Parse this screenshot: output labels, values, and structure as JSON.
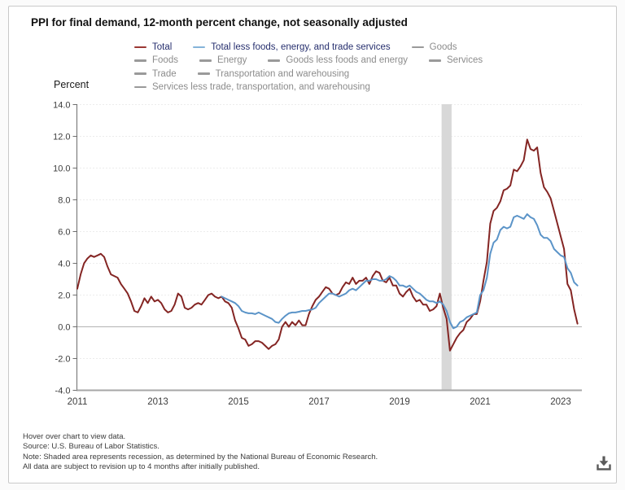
{
  "title": "PPI for final demand, 12-month percent change, not seasonally adjusted",
  "y_axis_title": "Percent",
  "colors": {
    "total_line": "#842523",
    "core_line": "#5b94c8",
    "active_legend_text": "#262f6e",
    "inactive_legend_text": "#8c8c8c",
    "inactive_swatch": "#9a9a9a",
    "grid": "#d9d9d9",
    "zero_line": "#b3b3b3",
    "x_axis": "#a6a6a6",
    "y_axis": "#6e6e6e",
    "tick_text": "#3d3d3d",
    "recession_band": "#d8d8d8",
    "icon": "#5a5a5a"
  },
  "legend": {
    "rows": [
      [
        {
          "label": "Total",
          "active": true,
          "color": "#9b3834"
        },
        {
          "label": "Total less foods, energy, and trade services",
          "active": true,
          "color": "#85b4d9"
        },
        {
          "label": "Goods",
          "active": false
        }
      ],
      [
        {
          "label": "Foods",
          "active": false
        },
        {
          "label": "Energy",
          "active": false
        },
        {
          "label": "Goods less foods and energy",
          "active": false
        },
        {
          "label": "Services",
          "active": false
        }
      ],
      [
        {
          "label": "Trade",
          "active": false
        },
        {
          "label": "Transportation and warehousing",
          "active": false
        }
      ],
      [
        {
          "label": "Services less trade, transportation, and warehousing",
          "active": false
        }
      ]
    ]
  },
  "chart_data": {
    "type": "line",
    "title": "PPI for final demand, 12-month percent change, not seasonally adjusted",
    "ylabel": "Percent",
    "ylim": [
      -4.0,
      14.0
    ],
    "grid": true,
    "yticks": [
      "14.0",
      "12.0",
      "10.0",
      "8.0",
      "6.0",
      "4.0",
      "2.0",
      "0.0",
      "-2.0",
      "-4.0"
    ],
    "xticks": [
      "2011",
      "2013",
      "2015",
      "2017",
      "2019",
      "2021",
      "2023"
    ],
    "x_start_month": "2011-01",
    "x_end_month": "2023-06",
    "recession_band": {
      "start": "2020-02",
      "end": "2020-04",
      "note": "recession shading"
    },
    "series": [
      {
        "name": "Total",
        "color": "#842523",
        "start_month": "2011-01",
        "values": [
          2.4,
          3.3,
          4.0,
          4.3,
          4.5,
          4.4,
          4.5,
          4.6,
          4.4,
          3.8,
          3.3,
          3.2,
          3.1,
          2.7,
          2.4,
          2.1,
          1.6,
          1.0,
          0.9,
          1.3,
          1.8,
          1.5,
          1.9,
          1.6,
          1.7,
          1.5,
          1.1,
          0.9,
          1.0,
          1.4,
          2.1,
          1.9,
          1.2,
          1.1,
          1.2,
          1.4,
          1.5,
          1.4,
          1.7,
          2.0,
          2.1,
          1.9,
          1.8,
          1.9,
          1.6,
          1.5,
          1.2,
          0.4,
          -0.1,
          -0.7,
          -0.8,
          -1.2,
          -1.1,
          -0.9,
          -0.9,
          -1.0,
          -1.2,
          -1.4,
          -1.2,
          -1.1,
          -0.8,
          0.0,
          0.3,
          0.0,
          0.3,
          0.1,
          0.4,
          0.1,
          0.1,
          0.8,
          1.3,
          1.7,
          1.9,
          2.2,
          2.5,
          2.4,
          2.1,
          2.0,
          2.1,
          2.5,
          2.8,
          2.7,
          3.1,
          2.7,
          2.9,
          2.9,
          3.1,
          2.7,
          3.2,
          3.5,
          3.4,
          2.9,
          2.8,
          3.1,
          2.6,
          2.6,
          2.1,
          1.9,
          2.2,
          2.4,
          1.9,
          1.6,
          1.7,
          1.4,
          1.4,
          1.0,
          1.1,
          1.3,
          2.1,
          1.2,
          0.5,
          -1.5,
          -1.1,
          -0.7,
          -0.4,
          -0.2,
          0.3,
          0.5,
          0.8,
          0.8,
          1.6,
          2.9,
          4.1,
          6.5,
          7.3,
          7.5,
          7.9,
          8.6,
          8.7,
          8.9,
          9.9,
          9.8,
          10.1,
          10.5,
          11.8,
          11.2,
          11.1,
          11.3,
          9.7,
          8.8,
          8.5,
          8.1,
          7.3,
          6.5,
          5.7,
          4.9,
          2.7,
          2.3,
          1.1,
          0.2
        ]
      },
      {
        "name": "Total less foods, energy, and trade services",
        "color": "#5b94c8",
        "start_month": "2014-08",
        "values": [
          1.9,
          1.8,
          1.7,
          1.6,
          1.5,
          1.3,
          1.0,
          0.9,
          0.85,
          0.85,
          0.8,
          0.9,
          0.8,
          0.7,
          0.6,
          0.5,
          0.3,
          0.25,
          0.5,
          0.7,
          0.85,
          0.9,
          0.9,
          0.95,
          1.0,
          1.0,
          1.05,
          1.1,
          1.2,
          1.5,
          1.7,
          1.9,
          2.1,
          2.1,
          2.0,
          1.9,
          2.0,
          2.1,
          2.3,
          2.4,
          2.3,
          2.5,
          2.7,
          2.9,
          2.9,
          3.0,
          3.0,
          2.9,
          2.9,
          3.0,
          3.2,
          3.1,
          2.9,
          2.6,
          2.6,
          2.5,
          2.6,
          2.4,
          2.2,
          2.1,
          1.9,
          1.7,
          1.6,
          1.6,
          1.5,
          1.6,
          1.4,
          1.0,
          0.3,
          -0.1,
          0.0,
          0.3,
          0.4,
          0.6,
          0.7,
          0.8,
          0.9,
          2.0,
          2.3,
          3.1,
          4.6,
          5.3,
          5.5,
          6.1,
          6.3,
          6.2,
          6.3,
          6.9,
          7.0,
          6.9,
          6.8,
          7.1,
          6.9,
          6.8,
          6.4,
          5.8,
          5.6,
          5.6,
          5.4,
          4.9,
          4.7,
          4.5,
          4.4,
          3.7,
          3.4,
          2.8,
          2.6
        ]
      }
    ]
  },
  "footer": {
    "lines": [
      "Hover over chart to view data.",
      "Source: U.S. Bureau of Labor Statistics.",
      "Note: Shaded area represents recession, as determined by the National Bureau of Economic Research.",
      "All data are subject to revision up to 4 months after initially published."
    ]
  },
  "icons": {
    "download": "download-icon"
  }
}
